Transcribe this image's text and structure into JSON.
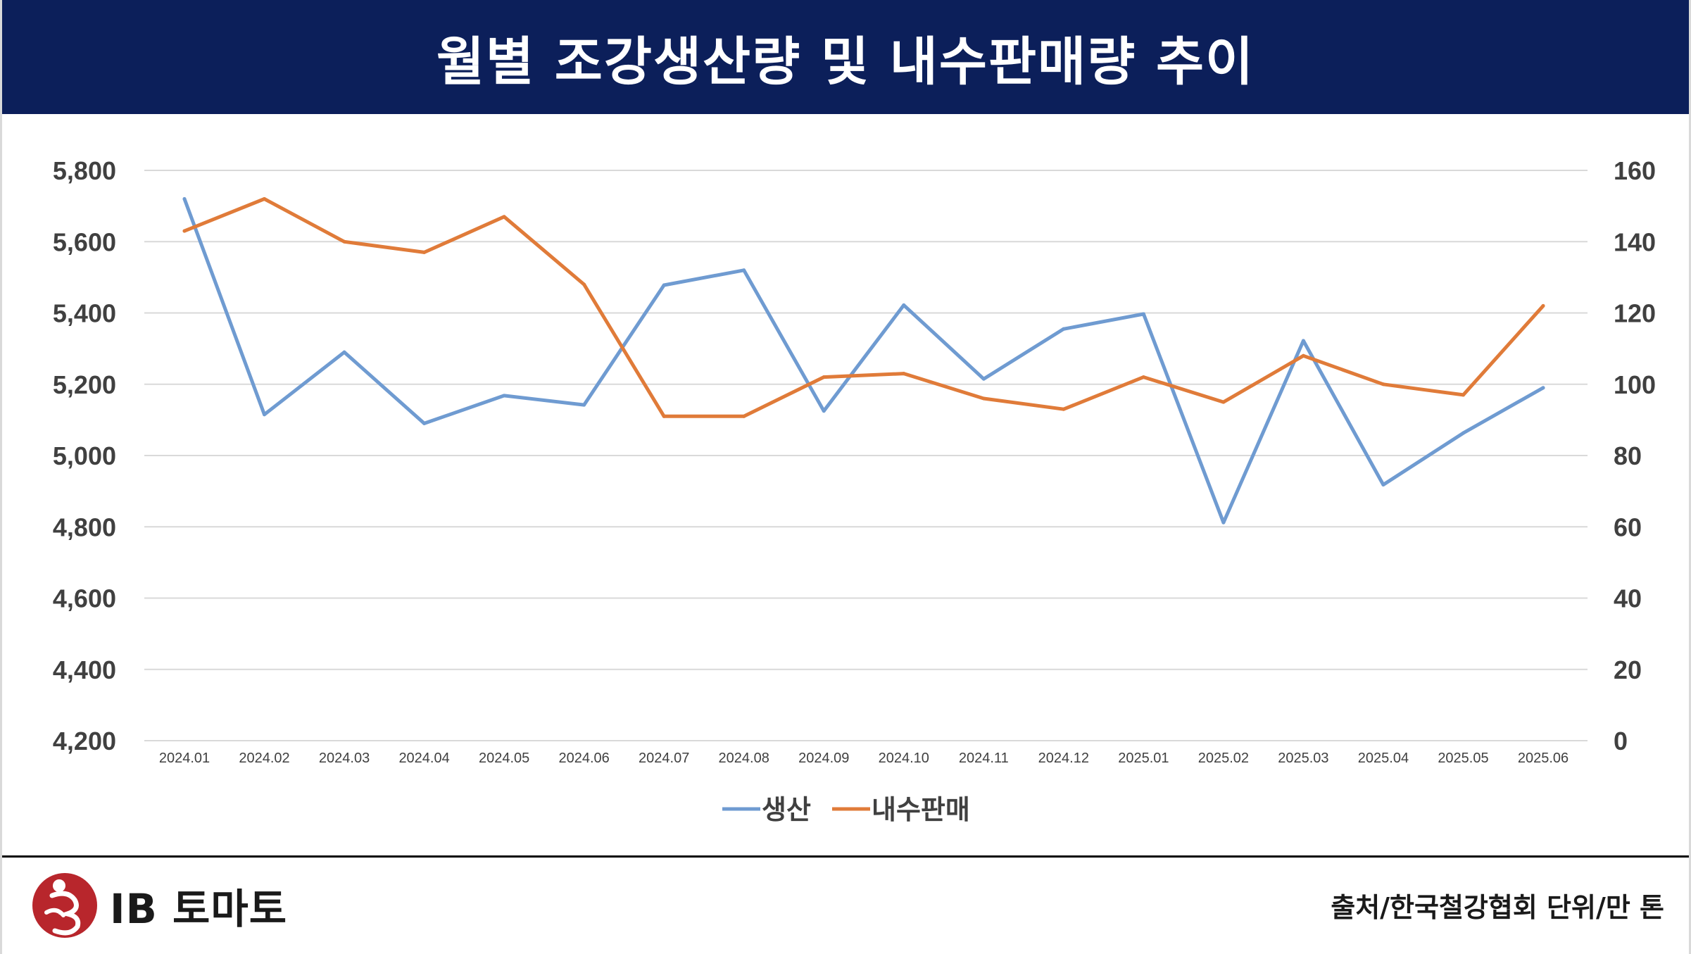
{
  "title": "월별 조강생산량 및 내수판매량 추이",
  "chart_data": {
    "type": "line",
    "title": "월별 조강생산량 및 내수판매량 추이",
    "categories": [
      "2024.01",
      "2024.02",
      "2024.03",
      "2024.04",
      "2024.05",
      "2024.06",
      "2024.07",
      "2024.08",
      "2024.09",
      "2024.10",
      "2024.11",
      "2024.12",
      "2025.01",
      "2025.02",
      "2025.03",
      "2025.04",
      "2025.05",
      "2025.06"
    ],
    "y_left": {
      "min": 4200,
      "max": 5800,
      "step": 200,
      "ticks": [
        "4,200",
        "4,400",
        "4,600",
        "4,800",
        "5,000",
        "5,200",
        "5,400",
        "5,600",
        "5,800"
      ]
    },
    "y_right": {
      "min": 0,
      "max": 160,
      "step": 20,
      "ticks": [
        "0",
        "20",
        "40",
        "60",
        "80",
        "100",
        "120",
        "140",
        "160"
      ]
    },
    "series": [
      {
        "name": "생산",
        "axis": "left",
        "color": "#6f9bd1",
        "values": [
          5720,
          5115,
          5290,
          5090,
          5168,
          5142,
          5478,
          5520,
          5125,
          5422,
          5215,
          5355,
          5397,
          4812,
          5322,
          4918,
          5063,
          5190
        ]
      },
      {
        "name": "내수판매",
        "axis": "right",
        "color": "#e07b39",
        "values": [
          143,
          152,
          140,
          137,
          147,
          128,
          91,
          91,
          102,
          103,
          96,
          93,
          102,
          95,
          108,
          100,
          97,
          122
        ]
      }
    ],
    "grid": true,
    "legend_position": "bottom-center"
  },
  "footer": {
    "logo_text": "IB 토마토",
    "source": "출처/한국철강협회 단위/만 톤"
  }
}
